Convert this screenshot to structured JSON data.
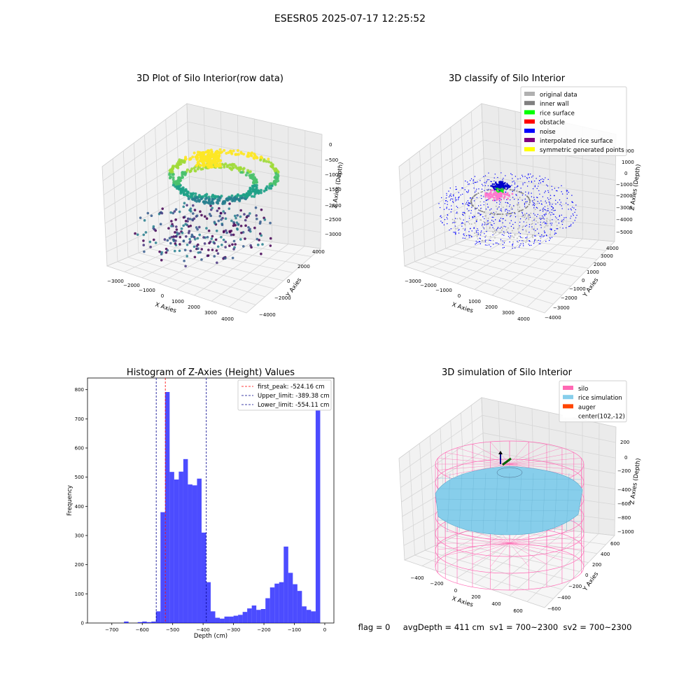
{
  "figure": {
    "suptitle": "ESESR05 2025-07-17 12:25:52",
    "footer": "flag = 0     avgDepth = 411 cm  sv1 = 700~2300  sv2 = 700~2300"
  },
  "chart_data": [
    {
      "type": "scatter3d",
      "title": "3D Plot of Silo Interior(row data)",
      "xlabel": "X Axies",
      "ylabel": "Y Axies",
      "zlabel": "Z Axies (Depth)",
      "x_ticks": [
        "−3000",
        "−2000",
        "−1000",
        "0",
        "1000",
        "2000",
        "3000",
        "4000"
      ],
      "y_ticks": [
        "−4000",
        "−2000",
        "0",
        "2000",
        "4000"
      ],
      "z_ticks": [
        "−3000",
        "−2500",
        "−2000",
        "−1500",
        "−1000",
        "−500",
        "0"
      ],
      "xlim": [
        -3300,
        4300
      ],
      "ylim": [
        -4300,
        4300
      ],
      "zlim": [
        -3300,
        100
      ],
      "colormap": "viridis"
    },
    {
      "type": "scatter3d",
      "title": "3D classify of Silo Interior",
      "xlabel": "X Axies",
      "ylabel": "Y Axies",
      "zlabel": "Z Axies (Depth)",
      "x_ticks": [
        "−3000",
        "−2000",
        "−1000",
        "0",
        "1000",
        "2000",
        "3000",
        "4000"
      ],
      "y_ticks": [
        "−4000",
        "−3000",
        "−2000",
        "−1000",
        "0",
        "1000",
        "2000",
        "3000",
        "4000"
      ],
      "z_ticks": [
        "−5000",
        "−4000",
        "−3000",
        "−2000",
        "−1000",
        "0",
        "1000",
        "2000"
      ],
      "legend": [
        {
          "label": "original data",
          "color": "#b0b0b0"
        },
        {
          "label": "inner wall",
          "color": "#808080"
        },
        {
          "label": "rice surface",
          "color": "#00ff00"
        },
        {
          "label": "obstacle",
          "color": "#ff0000"
        },
        {
          "label": "noise",
          "color": "#0000ff"
        },
        {
          "label": "interpolated rice surface",
          "color": "#800080"
        },
        {
          "label": "symmetric generated points",
          "color": "#ffff00"
        }
      ],
      "legend_loc": "upper right"
    },
    {
      "type": "bar",
      "title": "Histogram of Z-Axies (Height) Values",
      "xlabel": "Depth (cm)",
      "ylabel": "Frequency",
      "xlim": [
        -780,
        30
      ],
      "ylim": [
        0,
        840
      ],
      "bin_width": 15,
      "x_ticks": [
        -700,
        -600,
        -500,
        -400,
        -300,
        -200,
        -100,
        0
      ],
      "y_ticks": [
        0,
        100,
        200,
        300,
        400,
        500,
        600,
        700,
        800
      ],
      "bin_starts": [
        -660,
        -615,
        -600,
        -585,
        -570,
        -555,
        -540,
        -525,
        -510,
        -495,
        -480,
        -465,
        -450,
        -435,
        -420,
        -405,
        -390,
        -375,
        -360,
        -345,
        -330,
        -315,
        -300,
        -285,
        -270,
        -255,
        -240,
        -225,
        -210,
        -195,
        -180,
        -165,
        -150,
        -135,
        -120,
        -105,
        -90,
        -75,
        -60,
        -45,
        -30,
        -15,
        0
      ],
      "values": [
        5,
        3,
        5,
        3,
        5,
        40,
        380,
        792,
        518,
        492,
        519,
        562,
        475,
        472,
        495,
        310,
        140,
        40,
        18,
        15,
        22,
        22,
        25,
        28,
        38,
        50,
        60,
        45,
        48,
        85,
        122,
        135,
        140,
        262,
        172,
        133,
        110,
        57,
        45,
        40,
        750,
        0,
        0
      ],
      "color": "#0000ff",
      "lines": [
        {
          "label": "first_peak: -524.16 cm",
          "x": -524.16,
          "color": "#ff0000"
        },
        {
          "label": "Upper_limit: -389.38 cm",
          "x": -389.38,
          "color": "#00008b"
        },
        {
          "label": "Lower_limit: -554.11 cm",
          "x": -554.11,
          "color": "#00008b"
        }
      ],
      "legend_loc": "upper right"
    },
    {
      "type": "surface3d",
      "title": "3D simulation of Silo Interior",
      "xlabel": "X Axies",
      "ylabel": "Y Axies",
      "zlabel": "Z Axies (Depth)",
      "x_ticks": [
        "−400",
        "−200",
        "0",
        "200",
        "400",
        "600"
      ],
      "y_ticks": [
        "−600",
        "−400",
        "−200",
        "0",
        "200",
        "400",
        "600"
      ],
      "z_ticks": [
        "−1000",
        "−800",
        "−600",
        "−400",
        "−200",
        "0",
        "200"
      ],
      "legend": [
        {
          "label": "silo",
          "color": "#ff69b4"
        },
        {
          "label": "rice simulation",
          "color": "#87ceeb"
        },
        {
          "label": "auger",
          "color": "#ff4500"
        },
        {
          "label": "center(102,-12)",
          "color": "#ffffff"
        }
      ],
      "legend_loc": "upper right"
    }
  ]
}
